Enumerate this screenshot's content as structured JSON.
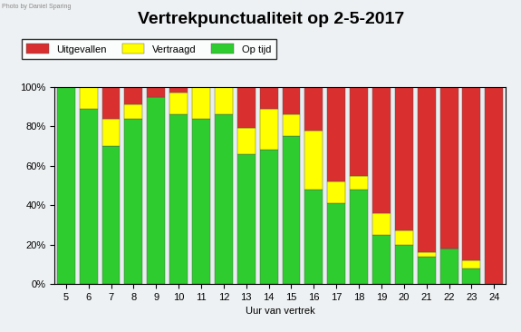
{
  "chart_data": {
    "type": "bar",
    "stacked": true,
    "title": "Vertrekpunctualiteit op 2-5-2017",
    "x_label": "Uur van vertrek",
    "annotations": [
      "Photo by Daniel Sparing"
    ],
    "categories": [
      "5",
      "6",
      "7",
      "8",
      "9",
      "10",
      "11",
      "12",
      "13",
      "14",
      "15",
      "16",
      "17",
      "18",
      "19",
      "20",
      "21",
      "22",
      "23",
      "24"
    ],
    "series": [
      {
        "name": "Uitgevallen",
        "color": "#d92f2f",
        "values": [
          0,
          0,
          16,
          9,
          5,
          3,
          0,
          0,
          21,
          11,
          14,
          22,
          48,
          45,
          64,
          73,
          84,
          82,
          88,
          100
        ]
      },
      {
        "name": "Vertraagd",
        "color": "#ffff00",
        "values": [
          0,
          11,
          14,
          7,
          0,
          11,
          16,
          14,
          13,
          21,
          11,
          30,
          11,
          7,
          11,
          7,
          2,
          0,
          4,
          0
        ]
      },
      {
        "name": "Op tijd",
        "color": "#2ecc2e",
        "values": [
          100,
          89,
          70,
          84,
          95,
          86,
          84,
          86,
          66,
          68,
          75,
          48,
          41,
          48,
          25,
          20,
          14,
          18,
          8,
          0
        ]
      }
    ],
    "ylim": [
      0,
      100
    ],
    "yticks": [
      {
        "value": 0,
        "label": "0%"
      },
      {
        "value": 20,
        "label": "20%"
      },
      {
        "value": 40,
        "label": "40%"
      },
      {
        "value": 60,
        "label": "60%"
      },
      {
        "value": 80,
        "label": "80%"
      },
      {
        "value": 100,
        "label": "100%"
      }
    ],
    "grid": false,
    "legend": "upper left"
  }
}
